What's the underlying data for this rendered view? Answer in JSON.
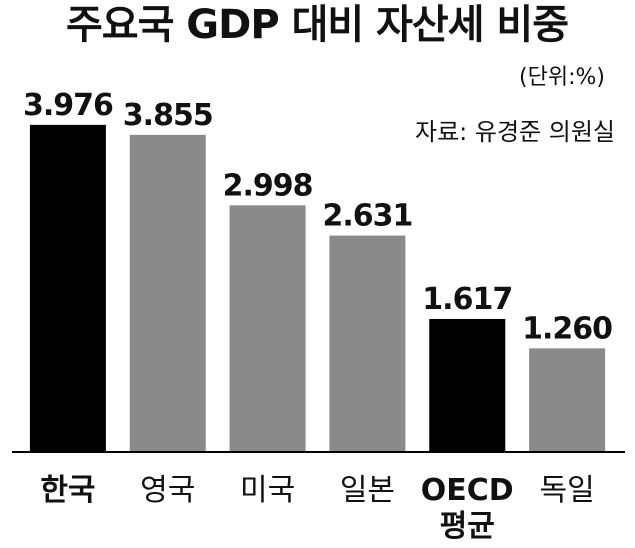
{
  "chart_data": {
    "type": "bar",
    "title": "주요국 GDP 대비 자산세 비중",
    "unit": "(단위:%)",
    "source": "자료: 유경준 의원실",
    "categories": [
      "한국",
      "영국",
      "미국",
      "일본",
      "OECD 평균",
      "독일"
    ],
    "category_lines": [
      [
        "한국"
      ],
      [
        "영국"
      ],
      [
        "미국"
      ],
      [
        "일본"
      ],
      [
        "OECD",
        "평균"
      ],
      [
        "독일"
      ]
    ],
    "values": [
      3.976,
      3.855,
      2.998,
      2.631,
      1.617,
      1.26
    ],
    "value_labels": [
      "3.976",
      "3.855",
      "2.998",
      "2.631",
      "1.617",
      "1.260"
    ],
    "highlight": [
      true,
      false,
      false,
      false,
      true,
      false
    ],
    "bar_colors": {
      "highlight": "#000000",
      "normal": "#8a8a8a"
    },
    "ylim": [
      0,
      4.4
    ],
    "grid": false,
    "legend": "none"
  }
}
